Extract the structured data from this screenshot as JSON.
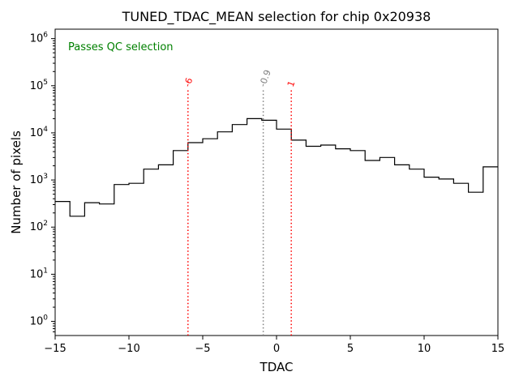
{
  "chart_data": {
    "type": "bar",
    "title": "TUNED_TDAC_MEAN selection for chip 0x20938",
    "xlabel": "TDAC",
    "ylabel": "Number of pixels",
    "annotation": {
      "text": "Passes QC selection",
      "color": "#008000"
    },
    "bin_start": -15,
    "bin_width": 1,
    "values": [
      350,
      170,
      330,
      310,
      800,
      850,
      1700,
      2100,
      4200,
      6200,
      7500,
      10500,
      15000,
      20000,
      18500,
      12000,
      7000,
      5200,
      5500,
      4600,
      4200,
      2600,
      3000,
      2100,
      1700,
      1150,
      1050,
      850,
      550,
      1900
    ],
    "xlim": [
      -15,
      15
    ],
    "ylim": [
      0.5,
      1600000
    ],
    "ylim_log10": [
      -0.3,
      6.2
    ],
    "xticks": [
      -15,
      -10,
      -5,
      0,
      5,
      10,
      15
    ],
    "xtick_labels": [
      "−15",
      "−10",
      "−5",
      "0",
      "5",
      "10",
      "15"
    ],
    "ytick_exponents": [
      0,
      1,
      2,
      3,
      4,
      5,
      6
    ],
    "grid": false,
    "legend": "none",
    "histogram_color": "#000000",
    "axis_color": "#000000",
    "vlines": [
      {
        "x": -6,
        "label": "-6",
        "color": "#ff0000",
        "style": "dotted"
      },
      {
        "x": -0.9,
        "label": "-0.9",
        "color": "#808080",
        "style": "dotted"
      },
      {
        "x": 1,
        "label": "1",
        "color": "#ff0000",
        "style": "dotted"
      }
    ]
  }
}
